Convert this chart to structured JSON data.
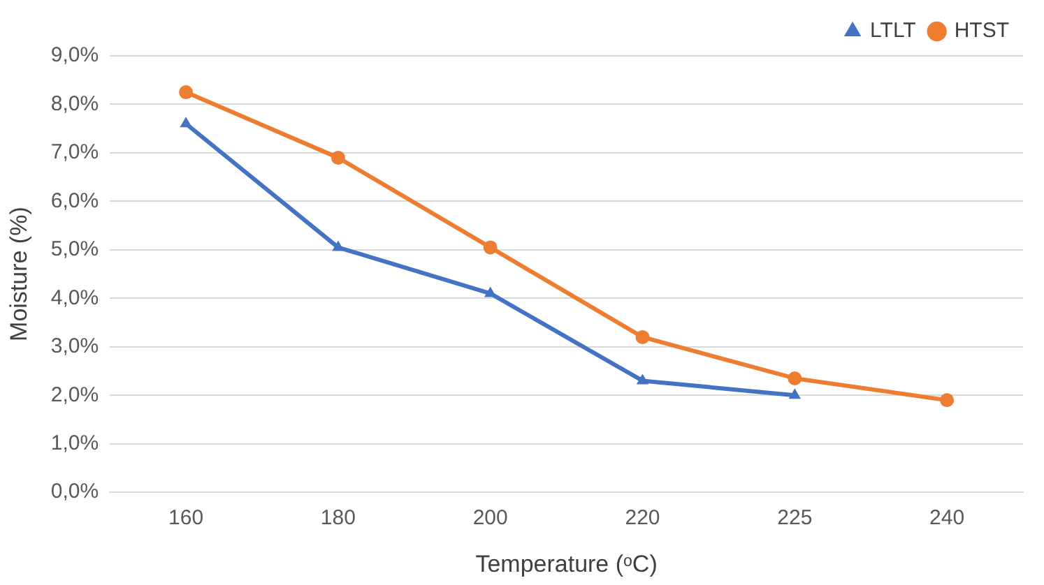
{
  "chart_data": {
    "type": "line",
    "xlabel": "Temperature (ᵒC)",
    "ylabel": "Moisture (%)",
    "categories": [
      "160",
      "180",
      "200",
      "220",
      "225",
      "240"
    ],
    "series": [
      {
        "name": "LTLT",
        "color": "#4472c4",
        "marker": "triangle",
        "values": [
          7.6,
          5.05,
          4.1,
          2.3,
          2.0,
          null
        ]
      },
      {
        "name": "HTST",
        "color": "#ed7d31",
        "marker": "circle",
        "values": [
          8.25,
          6.9,
          5.05,
          3.2,
          2.35,
          1.9
        ]
      }
    ],
    "ylim": [
      0,
      9
    ],
    "yticks": [
      {
        "value": 0,
        "label": "0,0%"
      },
      {
        "value": 1,
        "label": "1,0%"
      },
      {
        "value": 2,
        "label": "2,0%"
      },
      {
        "value": 3,
        "label": "3,0%"
      },
      {
        "value": 4,
        "label": "4,0%"
      },
      {
        "value": 5,
        "label": "5,0%"
      },
      {
        "value": 6,
        "label": "6,0%"
      },
      {
        "value": 7,
        "label": "7,0%"
      },
      {
        "value": 8,
        "label": "8,0%"
      },
      {
        "value": 9,
        "label": "9,0%"
      }
    ],
    "grid": "y",
    "legend": "top right"
  }
}
